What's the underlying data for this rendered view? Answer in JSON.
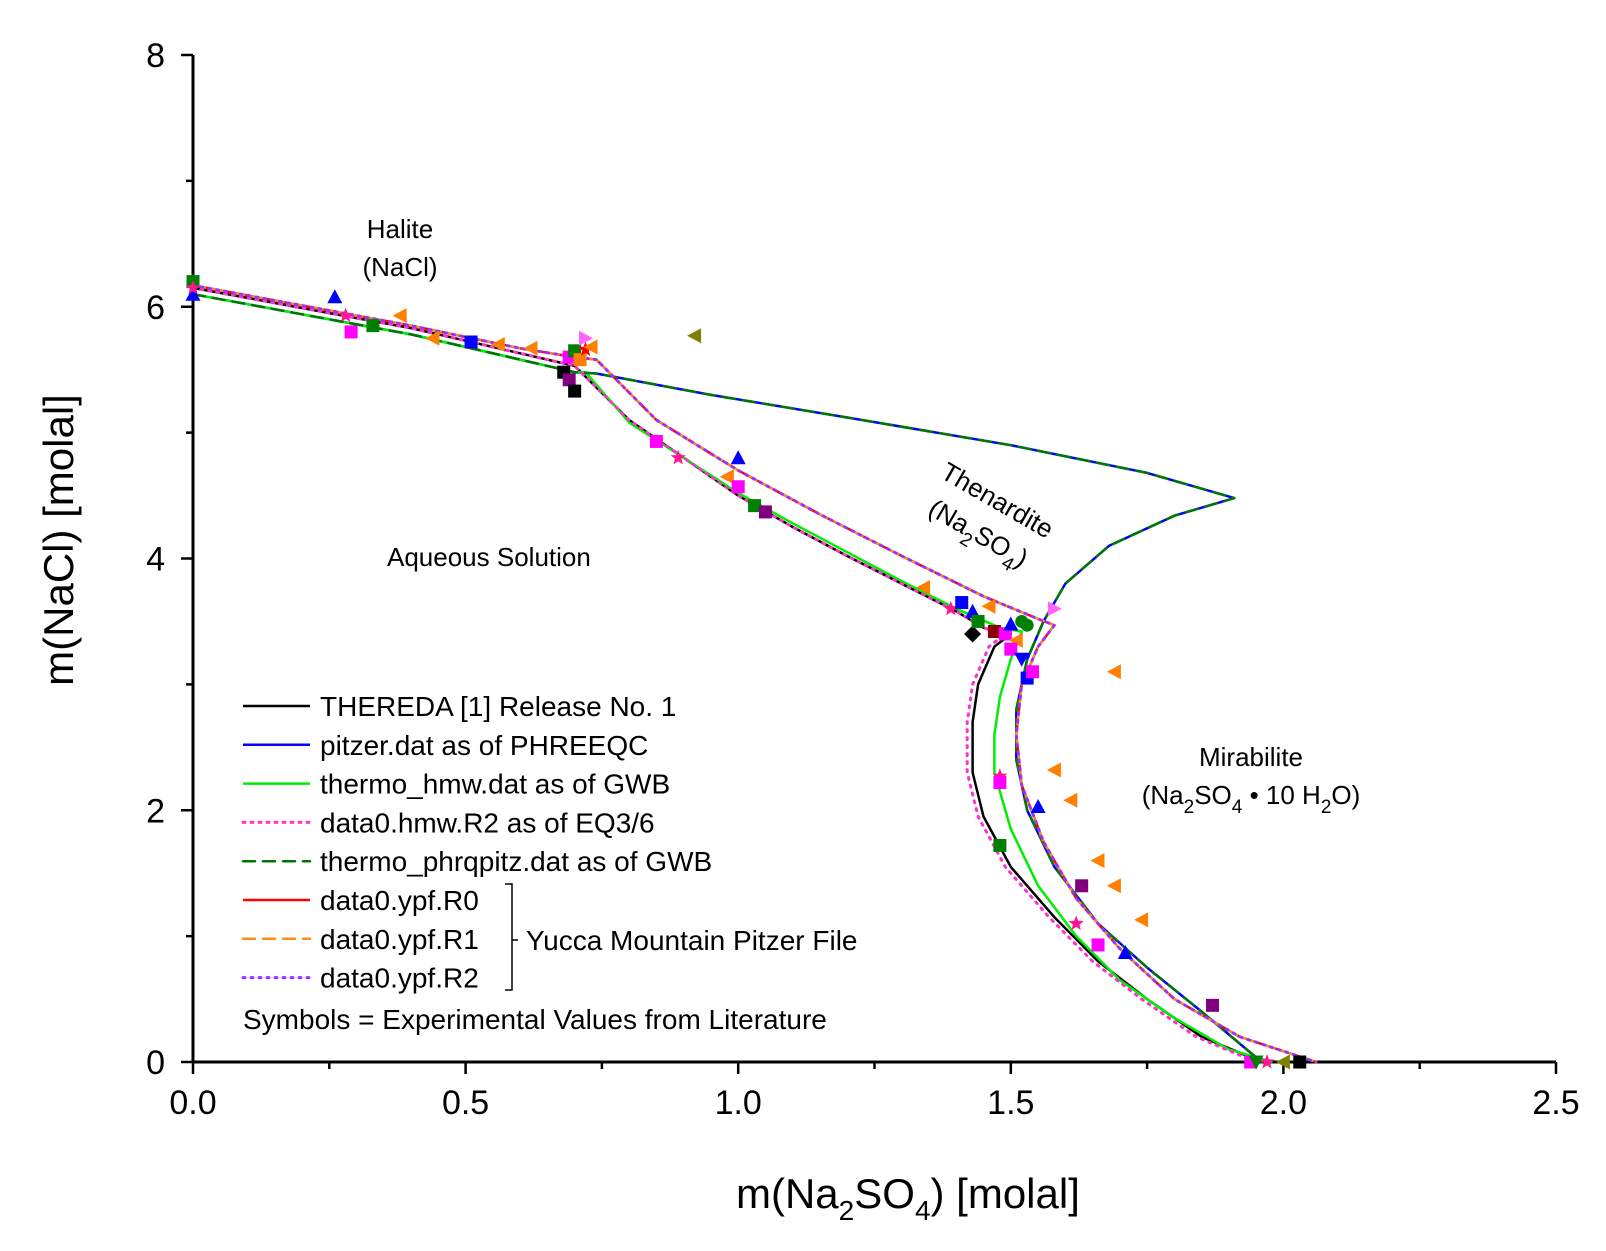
{
  "chart_data": {
    "type": "line",
    "xlabel": {
      "main": "m(Na",
      "sub1": "2",
      "mid": "SO",
      "sub2": "4",
      "end": ") [molal]"
    },
    "ylabel": "m(NaCl) [molal]",
    "xlim": [
      0,
      2.5
    ],
    "ylim": [
      0,
      8
    ],
    "xticks": [
      0.0,
      0.5,
      1.0,
      1.5,
      2.0,
      2.5
    ],
    "xtick_labels": [
      "0.0",
      "0.5",
      "1.0",
      "1.5",
      "2.0",
      "2.5"
    ],
    "yticks": [
      0,
      2,
      4,
      6,
      8
    ],
    "ytick_labels": [
      "0",
      "2",
      "4",
      "6",
      "8"
    ],
    "grid": false,
    "legend_position": "bottom-left",
    "regions": {
      "halite": {
        "line1": "Halite",
        "line2": "(NaCl)"
      },
      "aqueous": "Aqueous Solution",
      "thenardite": {
        "line1": "Thenardite",
        "line2_pre": "(Na",
        "line2_sub1": "2",
        "line2_mid": "SO",
        "line2_sub2": "4",
        "line2_end": ")"
      },
      "mirabilite": {
        "line1": "Mirabilite",
        "line2_pre": "(Na",
        "line2_sub1": "2",
        "line2_mid": "SO",
        "line2_sub2": "4",
        "line2_mid2": " • 10 H",
        "line2_sub3": "2",
        "line2_end": "O)"
      }
    },
    "legend": {
      "entries": [
        {
          "label": "THEREDA [1] Release No. 1",
          "color": "#000000",
          "dash": "solid"
        },
        {
          "label": "pitzer.dat as of PHREEQC",
          "color": "#0000ff",
          "dash": "solid"
        },
        {
          "label": "thermo_hmw.dat as of GWB",
          "color": "#00ee00",
          "dash": "solid"
        },
        {
          "label": "data0.hmw.R2 as of EQ3/6",
          "color": "#ff33cc",
          "dash": "dot"
        },
        {
          "label": "thermo_phrqpitz.dat as of GWB",
          "color": "#007700",
          "dash": "dash"
        },
        {
          "label": "data0.ypf.R0",
          "color": "#ff0000",
          "dash": "solid"
        },
        {
          "label": "data0.ypf.R1",
          "color": "#ff8c1a",
          "dash": "dash"
        },
        {
          "label": "data0.ypf.R2",
          "color": "#9933ff",
          "dash": "dot"
        }
      ],
      "bracket_label": "Yucca Mountain Pitzer File",
      "symbols_note": "Symbols = Experimental Values from Literature"
    },
    "series": [
      {
        "name": "THEREDA [1] Release No. 1",
        "color": "#000000",
        "dash": "solid",
        "width": 2.5,
        "x": [
          0.0,
          0.1,
          0.2,
          0.3,
          0.4,
          0.5,
          0.6,
          0.7,
          0.8,
          0.9,
          1.0,
          1.1,
          1.2,
          1.3,
          1.4,
          1.45,
          1.47,
          1.5,
          1.47,
          1.44,
          1.43,
          1.43,
          1.45,
          1.5,
          1.58,
          1.66,
          1.75,
          1.85,
          1.96
        ],
        "y": [
          6.15,
          6.07,
          5.99,
          5.91,
          5.83,
          5.73,
          5.63,
          5.53,
          5.1,
          4.8,
          4.5,
          4.25,
          4.02,
          3.8,
          3.58,
          3.45,
          3.42,
          3.4,
          3.3,
          3.0,
          2.7,
          2.3,
          1.95,
          1.55,
          1.15,
          0.8,
          0.5,
          0.2,
          0.0
        ]
      },
      {
        "name": "pitzer.dat as of PHREEQC",
        "color": "#0000ff",
        "dash": "solid",
        "width": 2.5,
        "x": [
          0.0,
          0.1,
          0.2,
          0.3,
          0.4,
          0.5,
          0.6,
          0.7,
          0.74,
          0.95,
          1.2,
          1.5,
          1.75,
          1.91,
          1.8,
          1.68,
          1.6,
          1.56,
          1.53,
          1.51,
          1.51,
          1.53,
          1.58,
          1.66,
          1.75,
          1.85,
          1.96
        ],
        "y": [
          6.1,
          6.02,
          5.94,
          5.86,
          5.78,
          5.68,
          5.58,
          5.48,
          5.47,
          5.3,
          5.12,
          4.9,
          4.68,
          4.48,
          4.34,
          4.1,
          3.8,
          3.5,
          3.2,
          2.8,
          2.4,
          2.0,
          1.55,
          1.1,
          0.75,
          0.4,
          0.0
        ]
      },
      {
        "name": "thermo_hmw.dat as of GWB",
        "color": "#00ee00",
        "dash": "solid",
        "width": 2.5,
        "x": [
          0.0,
          0.1,
          0.2,
          0.3,
          0.4,
          0.5,
          0.6,
          0.7,
          0.72,
          0.8,
          0.9,
          1.0,
          1.1,
          1.2,
          1.3,
          1.4,
          1.48,
          1.52,
          1.5,
          1.48,
          1.47,
          1.47,
          1.5,
          1.55,
          1.62,
          1.7,
          1.8,
          1.9,
          1.98
        ],
        "y": [
          6.1,
          6.02,
          5.94,
          5.86,
          5.78,
          5.68,
          5.58,
          5.48,
          5.48,
          5.08,
          4.8,
          4.52,
          4.28,
          4.05,
          3.82,
          3.6,
          3.45,
          3.42,
          3.2,
          2.9,
          2.6,
          2.3,
          1.85,
          1.4,
          1.0,
          0.65,
          0.35,
          0.1,
          0.0
        ]
      },
      {
        "name": "data0.hmw.R2 as of EQ3/6",
        "color": "#ff33cc",
        "dash": "dot",
        "width": 3,
        "x": [
          0.0,
          0.1,
          0.2,
          0.3,
          0.4,
          0.5,
          0.6,
          0.7,
          0.8,
          0.9,
          1.0,
          1.1,
          1.2,
          1.3,
          1.4,
          1.45,
          1.47,
          1.49,
          1.46,
          1.43,
          1.42,
          1.42,
          1.44,
          1.49,
          1.57,
          1.65,
          1.74,
          1.84,
          1.95
        ],
        "y": [
          6.15,
          6.07,
          5.99,
          5.91,
          5.83,
          5.73,
          5.63,
          5.53,
          5.1,
          4.8,
          4.5,
          4.25,
          4.02,
          3.8,
          3.58,
          3.45,
          3.42,
          3.4,
          3.3,
          3.0,
          2.7,
          2.3,
          1.95,
          1.55,
          1.15,
          0.8,
          0.5,
          0.2,
          0.0
        ]
      },
      {
        "name": "thermo_phrqpitz.dat as of GWB",
        "color": "#007700",
        "dash": "dash",
        "width": 2.5,
        "x": [
          0.0,
          0.1,
          0.2,
          0.3,
          0.4,
          0.5,
          0.6,
          0.7,
          0.74,
          0.95,
          1.2,
          1.5,
          1.75,
          1.91,
          1.8,
          1.68,
          1.6,
          1.56,
          1.53,
          1.51,
          1.51,
          1.53,
          1.58,
          1.66,
          1.75,
          1.85,
          1.96
        ],
        "y": [
          6.1,
          6.02,
          5.94,
          5.86,
          5.78,
          5.68,
          5.58,
          5.48,
          5.47,
          5.3,
          5.12,
          4.9,
          4.68,
          4.48,
          4.34,
          4.1,
          3.8,
          3.5,
          3.2,
          2.8,
          2.4,
          2.0,
          1.55,
          1.1,
          0.75,
          0.4,
          0.0
        ]
      },
      {
        "name": "data0.ypf.R0",
        "color": "#ff0000",
        "dash": "solid",
        "width": 2.5,
        "x": [
          0.0,
          0.1,
          0.2,
          0.3,
          0.4,
          0.5,
          0.6,
          0.7,
          0.74,
          0.85,
          1.0,
          1.15,
          1.3,
          1.45,
          1.55,
          1.58,
          1.55,
          1.52,
          1.51,
          1.52,
          1.56,
          1.62,
          1.7,
          1.8,
          1.92,
          2.06
        ],
        "y": [
          6.17,
          6.09,
          6.01,
          5.93,
          5.85,
          5.76,
          5.67,
          5.6,
          5.58,
          5.1,
          4.7,
          4.35,
          4.02,
          3.7,
          3.52,
          3.47,
          3.3,
          3.0,
          2.6,
          2.2,
          1.75,
          1.3,
          0.9,
          0.5,
          0.2,
          0.0
        ]
      },
      {
        "name": "data0.ypf.R1",
        "color": "#ff8c1a",
        "dash": "dash",
        "width": 2.5,
        "x": [
          0.0,
          0.1,
          0.2,
          0.3,
          0.4,
          0.5,
          0.6,
          0.7,
          0.74,
          0.85,
          1.0,
          1.15,
          1.3,
          1.45,
          1.55,
          1.58,
          1.55,
          1.52,
          1.51,
          1.52,
          1.56,
          1.62,
          1.7,
          1.8,
          1.92,
          2.06
        ],
        "y": [
          6.17,
          6.09,
          6.01,
          5.93,
          5.85,
          5.76,
          5.67,
          5.6,
          5.58,
          5.1,
          4.7,
          4.35,
          4.02,
          3.7,
          3.52,
          3.47,
          3.3,
          3.0,
          2.6,
          2.2,
          1.75,
          1.3,
          0.9,
          0.5,
          0.2,
          0.0
        ]
      },
      {
        "name": "data0.ypf.R2",
        "color": "#9933ff",
        "dash": "dot",
        "width": 3,
        "x": [
          0.0,
          0.1,
          0.2,
          0.3,
          0.4,
          0.5,
          0.6,
          0.7,
          0.74,
          0.85,
          1.0,
          1.15,
          1.3,
          1.45,
          1.55,
          1.58,
          1.55,
          1.52,
          1.51,
          1.52,
          1.56,
          1.62,
          1.7,
          1.8,
          1.92,
          2.06
        ],
        "y": [
          6.17,
          6.09,
          6.01,
          5.93,
          5.85,
          5.76,
          5.67,
          5.6,
          5.58,
          5.1,
          4.7,
          4.35,
          4.02,
          3.7,
          3.52,
          3.47,
          3.3,
          3.0,
          2.6,
          2.2,
          1.75,
          1.3,
          0.9,
          0.5,
          0.2,
          0.0
        ]
      }
    ],
    "points": [
      {
        "x": 0.0,
        "y": 6.2,
        "shape": "square",
        "color": "#008000"
      },
      {
        "x": 0.0,
        "y": 6.1,
        "shape": "triangle-up",
        "color": "#0000ff"
      },
      {
        "x": 0.0,
        "y": 6.15,
        "shape": "star",
        "color": "#ff1493"
      },
      {
        "x": 0.26,
        "y": 6.08,
        "shape": "triangle-up",
        "color": "#0000ff"
      },
      {
        "x": 0.28,
        "y": 5.93,
        "shape": "star",
        "color": "#ff1493"
      },
      {
        "x": 0.29,
        "y": 5.8,
        "shape": "square",
        "color": "#ff00ff"
      },
      {
        "x": 0.33,
        "y": 5.85,
        "shape": "square",
        "color": "#008000"
      },
      {
        "x": 0.38,
        "y": 5.93,
        "shape": "triangle-left",
        "color": "#ff8000"
      },
      {
        "x": 0.44,
        "y": 5.75,
        "shape": "triangle-left",
        "color": "#ff8000"
      },
      {
        "x": 0.51,
        "y": 5.72,
        "shape": "square",
        "color": "#0000ff"
      },
      {
        "x": 0.56,
        "y": 5.7,
        "shape": "triangle-left",
        "color": "#ff8000"
      },
      {
        "x": 0.62,
        "y": 5.67,
        "shape": "triangle-left",
        "color": "#ff8000"
      },
      {
        "x": 0.68,
        "y": 5.48,
        "shape": "square",
        "color": "#000000"
      },
      {
        "x": 0.69,
        "y": 5.42,
        "shape": "square",
        "color": "#800080"
      },
      {
        "x": 0.7,
        "y": 5.33,
        "shape": "square",
        "color": "#000000"
      },
      {
        "x": 0.69,
        "y": 5.6,
        "shape": "square",
        "color": "#ff00ff"
      },
      {
        "x": 0.7,
        "y": 5.65,
        "shape": "square",
        "color": "#008000"
      },
      {
        "x": 0.71,
        "y": 5.58,
        "shape": "square",
        "color": "#ff8000"
      },
      {
        "x": 0.72,
        "y": 5.66,
        "shape": "star",
        "color": "#ff0000"
      },
      {
        "x": 0.72,
        "y": 5.75,
        "shape": "triangle-right",
        "color": "#ff66ff"
      },
      {
        "x": 0.73,
        "y": 5.68,
        "shape": "triangle-left",
        "color": "#ff8000"
      },
      {
        "x": 0.92,
        "y": 5.77,
        "shape": "triangle-left",
        "color": "#808000"
      },
      {
        "x": 0.85,
        "y": 4.93,
        "shape": "square",
        "color": "#ff00ff"
      },
      {
        "x": 0.89,
        "y": 4.8,
        "shape": "star",
        "color": "#ff1493"
      },
      {
        "x": 1.0,
        "y": 4.8,
        "shape": "triangle-up",
        "color": "#0000ff"
      },
      {
        "x": 0.98,
        "y": 4.65,
        "shape": "triangle-left",
        "color": "#ff8000"
      },
      {
        "x": 1.0,
        "y": 4.57,
        "shape": "square",
        "color": "#ff00ff"
      },
      {
        "x": 1.03,
        "y": 4.42,
        "shape": "square",
        "color": "#008000"
      },
      {
        "x": 1.05,
        "y": 4.37,
        "shape": "square",
        "color": "#800080"
      },
      {
        "x": 1.34,
        "y": 3.77,
        "shape": "triangle-left",
        "color": "#ff8000"
      },
      {
        "x": 1.39,
        "y": 3.6,
        "shape": "star",
        "color": "#ff1493"
      },
      {
        "x": 1.41,
        "y": 3.65,
        "shape": "square",
        "color": "#0000ff"
      },
      {
        "x": 1.43,
        "y": 3.58,
        "shape": "triangle-up",
        "color": "#0000ff"
      },
      {
        "x": 1.43,
        "y": 3.4,
        "shape": "diamond",
        "color": "#000000"
      },
      {
        "x": 1.44,
        "y": 3.5,
        "shape": "square",
        "color": "#008000"
      },
      {
        "x": 1.46,
        "y": 3.62,
        "shape": "triangle-left",
        "color": "#ff8000"
      },
      {
        "x": 1.47,
        "y": 3.42,
        "shape": "square",
        "color": "#8b0000"
      },
      {
        "x": 1.49,
        "y": 3.4,
        "shape": "square",
        "color": "#ff00ff"
      },
      {
        "x": 1.5,
        "y": 3.48,
        "shape": "triangle-up",
        "color": "#0000ff"
      },
      {
        "x": 1.51,
        "y": 3.35,
        "shape": "triangle-left",
        "color": "#ff8000"
      },
      {
        "x": 1.5,
        "y": 3.28,
        "shape": "square",
        "color": "#ff00ff"
      },
      {
        "x": 1.52,
        "y": 3.5,
        "shape": "circle",
        "color": "#008000"
      },
      {
        "x": 1.53,
        "y": 3.47,
        "shape": "circle",
        "color": "#008000"
      },
      {
        "x": 1.52,
        "y": 3.2,
        "shape": "triangle-down",
        "color": "#0000ff"
      },
      {
        "x": 1.53,
        "y": 3.05,
        "shape": "square",
        "color": "#0000ff"
      },
      {
        "x": 1.54,
        "y": 3.1,
        "shape": "square",
        "color": "#ff00ff"
      },
      {
        "x": 1.58,
        "y": 3.6,
        "shape": "triangle-right",
        "color": "#ff66ff"
      },
      {
        "x": 1.69,
        "y": 3.1,
        "shape": "triangle-left",
        "color": "#ff8000"
      },
      {
        "x": 1.48,
        "y": 2.27,
        "shape": "star",
        "color": "#ff1493"
      },
      {
        "x": 1.48,
        "y": 2.22,
        "shape": "square",
        "color": "#ff00ff"
      },
      {
        "x": 1.58,
        "y": 2.32,
        "shape": "triangle-left",
        "color": "#ff8000"
      },
      {
        "x": 1.55,
        "y": 2.03,
        "shape": "triangle-up",
        "color": "#0000ff"
      },
      {
        "x": 1.61,
        "y": 2.08,
        "shape": "triangle-left",
        "color": "#ff8000"
      },
      {
        "x": 1.48,
        "y": 1.72,
        "shape": "square",
        "color": "#008000"
      },
      {
        "x": 1.66,
        "y": 1.6,
        "shape": "triangle-left",
        "color": "#ff8000"
      },
      {
        "x": 1.63,
        "y": 1.4,
        "shape": "square",
        "color": "#800080"
      },
      {
        "x": 1.69,
        "y": 1.4,
        "shape": "triangle-left",
        "color": "#ff8000"
      },
      {
        "x": 1.74,
        "y": 1.13,
        "shape": "triangle-left",
        "color": "#ff8000"
      },
      {
        "x": 1.62,
        "y": 1.1,
        "shape": "star",
        "color": "#ff1493"
      },
      {
        "x": 1.66,
        "y": 0.93,
        "shape": "square",
        "color": "#ff00ff"
      },
      {
        "x": 1.71,
        "y": 0.87,
        "shape": "triangle-up",
        "color": "#0000ff"
      },
      {
        "x": 1.87,
        "y": 0.45,
        "shape": "square",
        "color": "#800080"
      },
      {
        "x": 1.94,
        "y": 0.0,
        "shape": "square",
        "color": "#ff00ff"
      },
      {
        "x": 1.95,
        "y": 0.0,
        "shape": "triangle-down",
        "color": "#008000"
      },
      {
        "x": 1.97,
        "y": 0.0,
        "shape": "star",
        "color": "#ff1493"
      },
      {
        "x": 2.0,
        "y": 0.0,
        "shape": "triangle-left",
        "color": "#808000"
      },
      {
        "x": 2.03,
        "y": 0.0,
        "shape": "square",
        "color": "#000000"
      }
    ]
  }
}
